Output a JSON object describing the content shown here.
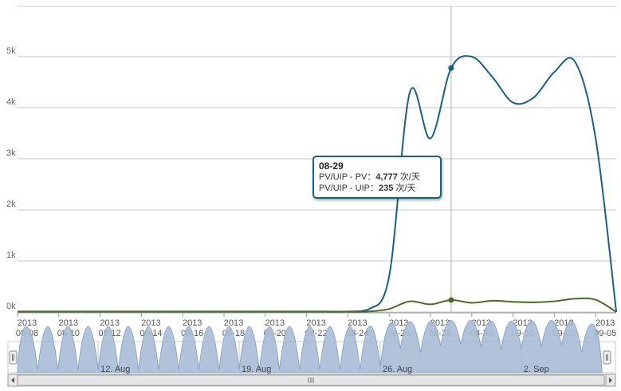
{
  "chart_data": {
    "type": "line",
    "y_ticks": [
      "0k",
      "1k",
      "2k",
      "3k",
      "4k",
      "5k"
    ],
    "ylim": [
      0,
      6000
    ],
    "x_ticks": [
      {
        "year": "2013",
        "date": "08-08"
      },
      {
        "year": "2013",
        "date": "08-10"
      },
      {
        "year": "2013",
        "date": "08-12"
      },
      {
        "year": "2013",
        "date": "08-14"
      },
      {
        "year": "2013",
        "date": "08-16"
      },
      {
        "year": "2013",
        "date": "08-18"
      },
      {
        "year": "2013",
        "date": "08-20"
      },
      {
        "year": "2013",
        "date": "08-22"
      },
      {
        "year": "2013",
        "date": "08-24"
      },
      {
        "year": "2013",
        "date": "08-26"
      },
      {
        "year": "2013",
        "date": "08-28"
      },
      {
        "year": "2013",
        "date": "08-30"
      },
      {
        "year": "2013",
        "date": "09-01"
      },
      {
        "year": "2013",
        "date": "09-03"
      },
      {
        "year": "2013",
        "date": "09-05"
      }
    ],
    "x": [
      "08-08",
      "08-09",
      "08-10",
      "08-11",
      "08-12",
      "08-13",
      "08-14",
      "08-15",
      "08-16",
      "08-17",
      "08-18",
      "08-19",
      "08-20",
      "08-21",
      "08-22",
      "08-23",
      "08-24",
      "08-25",
      "08-26",
      "08-27",
      "08-28",
      "08-29",
      "08-30",
      "08-31",
      "09-01",
      "09-02",
      "09-03",
      "09-04",
      "09-05",
      "09-06"
    ],
    "series": [
      {
        "name": "PV/UIP - PV",
        "color": "#1a5f8a",
        "values": [
          10,
          10,
          10,
          10,
          10,
          10,
          10,
          10,
          10,
          10,
          10,
          10,
          10,
          10,
          10,
          10,
          10,
          50,
          700,
          4300,
          3400,
          4777,
          5000,
          4600,
          4100,
          4200,
          4700,
          4900,
          3400,
          0
        ]
      },
      {
        "name": "PV/UIP - UIP",
        "color": "#4a6a2a",
        "values": [
          5,
          5,
          5,
          5,
          5,
          5,
          5,
          5,
          5,
          5,
          5,
          5,
          5,
          5,
          5,
          5,
          5,
          10,
          60,
          210,
          150,
          235,
          180,
          220,
          200,
          190,
          210,
          260,
          240,
          0
        ]
      }
    ],
    "grid": true,
    "legend": "none",
    "navigator": {
      "labels": [
        "12. Aug",
        "19. Aug",
        "26. Aug",
        "2. Sep"
      ]
    },
    "tooltip": {
      "date": "08-29",
      "rows": [
        {
          "label": "PV/UIP - PV：",
          "value": "4,777",
          "unit": " 次/天"
        },
        {
          "label": "PV/UIP - UIP：",
          "value": "235",
          "unit": " 次/天"
        }
      ]
    }
  }
}
